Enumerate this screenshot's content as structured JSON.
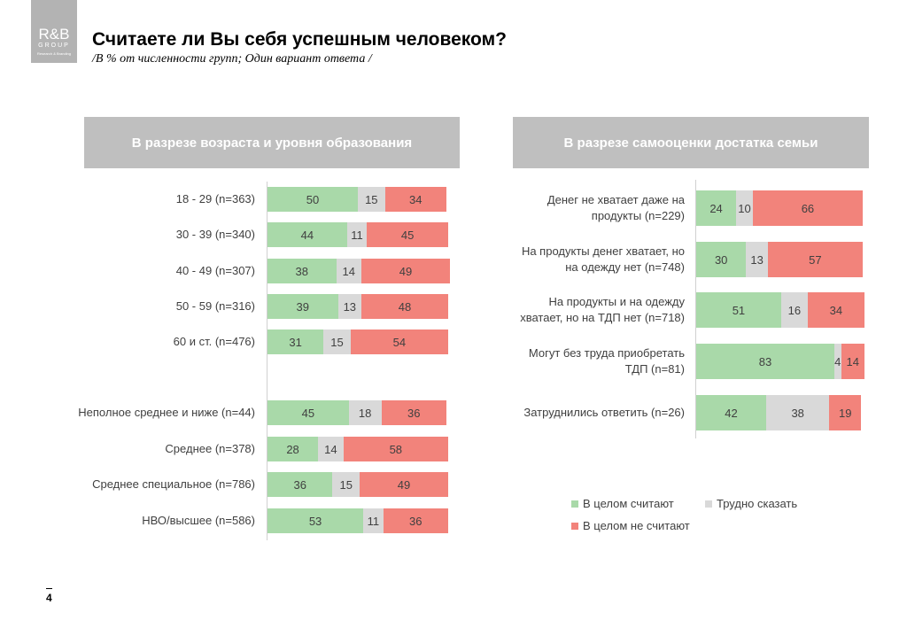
{
  "logo": {
    "line1": "R&B",
    "line2": "GROUP",
    "line3": "Research & Branding"
  },
  "title": "Считаете ли Вы себя успешным человеком?",
  "subtitle": "/В % от численности групп; Один вариант ответа /",
  "page_number": "4",
  "colors": {
    "yes": "#a9d9a9",
    "hard": "#d9d9d9",
    "no": "#f2837b"
  },
  "legend": {
    "yes": "В целом считают",
    "hard": "Трудно сказать",
    "no": "В целом не считают"
  },
  "chart_data": [
    {
      "type": "bar",
      "stacked": true,
      "orientation": "horizontal",
      "title": "В разрезе возраста и уровня образования",
      "categories": [
        "18 - 29 (n=363)",
        "30 - 39 (n=340)",
        "40 - 49 (n=307)",
        "50 - 59 (n=316)",
        "60 и ст. (n=476)",
        "Неполное среднее и ниже (n=44)",
        "Среднее (n=378)",
        "Среднее специальное (n=786)",
        "НВО/высшее (n=586)"
      ],
      "series": [
        {
          "name": "В целом считают",
          "values": [
            50,
            44,
            38,
            39,
            31,
            45,
            28,
            36,
            53
          ]
        },
        {
          "name": "Трудно сказать",
          "values": [
            15,
            11,
            14,
            13,
            15,
            18,
            14,
            15,
            11
          ]
        },
        {
          "name": "В целом не считают",
          "values": [
            34,
            45,
            49,
            48,
            54,
            36,
            58,
            49,
            36
          ]
        }
      ]
    },
    {
      "type": "bar",
      "stacked": true,
      "orientation": "horizontal",
      "title": "В разрезе самооценки достатка семьи",
      "categories": [
        "Денег не хватает даже на продукты (n=229)",
        "На продукты денег хватает, но на одежду нет (n=748)",
        "На продукты и на одежду хватает, но на ТДП нет (n=718)",
        "Могут без труда приобретать ТДП (n=81)",
        "Затруднились ответить (n=26)"
      ],
      "series": [
        {
          "name": "В целом считают",
          "values": [
            24,
            30,
            51,
            83,
            42
          ]
        },
        {
          "name": "Трудно сказать",
          "values": [
            10,
            13,
            16,
            4,
            38
          ]
        },
        {
          "name": "В целом не считают",
          "values": [
            66,
            57,
            34,
            14,
            19
          ]
        }
      ]
    }
  ]
}
